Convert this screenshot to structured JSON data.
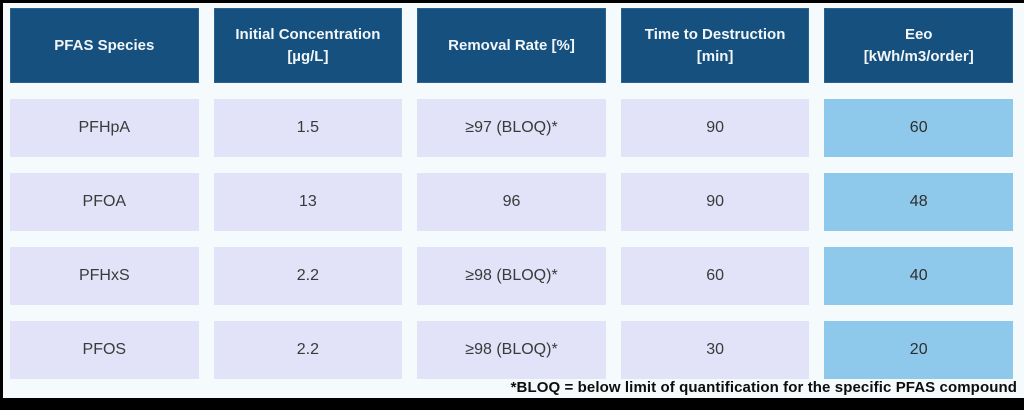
{
  "page": {
    "background": "#f5fafc",
    "frame_color": "#000000"
  },
  "colors": {
    "header_bg": "#15507e",
    "header_text": "#f2f6f9",
    "cell_bg": "#e2e2f8",
    "eeo_cell_bg": "#8ec8eb",
    "cell_text": "#3a3a3a"
  },
  "table": {
    "headers": [
      {
        "label": "PFAS Species"
      },
      {
        "label": "Initial Concentration\n[µg/L]"
      },
      {
        "label": "Removal Rate [%]"
      },
      {
        "label": "Time to Destruction\n[min]"
      },
      {
        "label": "Eeo\n[kWh/m3/order]"
      }
    ],
    "rows": [
      {
        "cells": [
          "PFHpA",
          "1.5",
          "≥97 (BLOQ)*",
          "90",
          "60"
        ]
      },
      {
        "cells": [
          "PFOA",
          "13",
          "96",
          "90",
          "48"
        ]
      },
      {
        "cells": [
          "PFHxS",
          "2.2",
          "≥98 (BLOQ)*",
          "60",
          "40"
        ]
      },
      {
        "cells": [
          "PFOS",
          "2.2",
          "≥98 (BLOQ)*",
          "30",
          "20"
        ]
      }
    ]
  },
  "footnote": "*BLOQ = below limit of quantification for the specific PFAS compound",
  "chart_data": {
    "type": "table",
    "title": "",
    "columns": [
      "PFAS Species",
      "Initial Concentration [µg/L]",
      "Removal Rate [%]",
      "Time to Destruction [min]",
      "Eeo [kWh/m3/order]"
    ],
    "rows": [
      [
        "PFHpA",
        1.5,
        "≥97 (BLOQ)*",
        90,
        60
      ],
      [
        "PFOA",
        13,
        "96",
        90,
        48
      ],
      [
        "PFHxS",
        2.2,
        "≥98 (BLOQ)*",
        60,
        40
      ],
      [
        "PFOS",
        2.2,
        "≥98 (BLOQ)*",
        30,
        20
      ]
    ],
    "footnote": "*BLOQ = below limit of quantification for the specific PFAS compound",
    "layout_hints": {
      "highlighted_column": "Eeo [kWh/m3/order]",
      "highlight_color": "#8ec8eb",
      "header_color": "#15507e"
    }
  }
}
